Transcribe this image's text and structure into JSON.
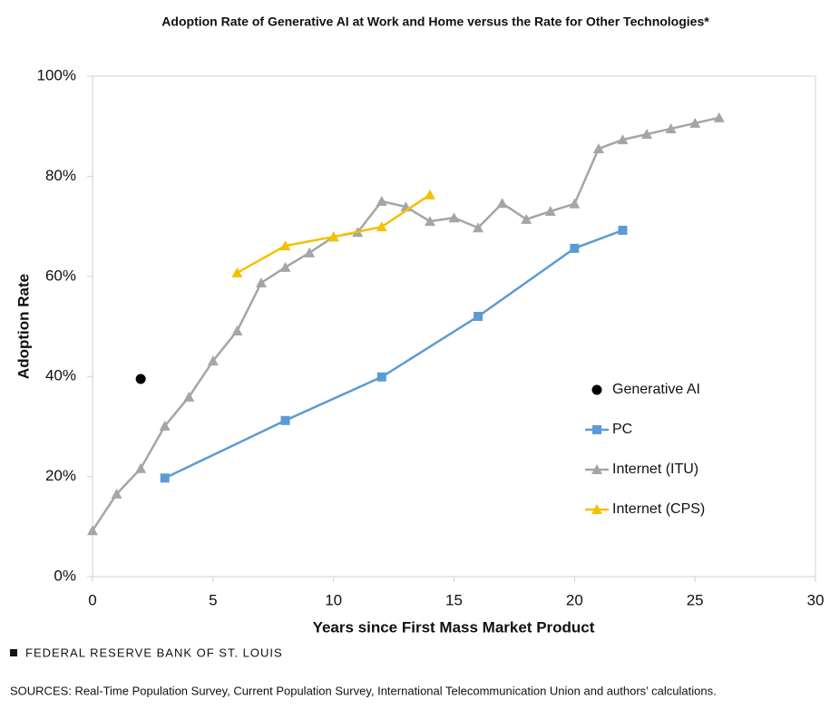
{
  "chart_data": {
    "type": "line",
    "title": "Adoption Rate of Generative AI at Work and Home versus the Rate for Other Technologies*",
    "x_label": "Years since First Mass Market Product",
    "y_label": "Adoption Rate",
    "xlim": [
      0,
      30
    ],
    "xticks": [
      0,
      5,
      10,
      15,
      20,
      25,
      30
    ],
    "ylim": [
      0,
      100
    ],
    "yticks": [
      {
        "value": 0,
        "label": "0%"
      },
      {
        "value": 20,
        "label": "20%"
      },
      {
        "value": 40,
        "label": "40%"
      },
      {
        "value": 60,
        "label": "60%"
      },
      {
        "value": 80,
        "label": "80%"
      },
      {
        "value": 100,
        "label": "100%"
      }
    ],
    "grid": false,
    "legend": "right",
    "series": [
      {
        "name": "Generative AI",
        "color": "#000000",
        "marker": "circle",
        "line": false,
        "x": [
          2
        ],
        "values": [
          39.5
        ]
      },
      {
        "name": "PC",
        "color": "#5b9bd5",
        "marker": "square",
        "line": true,
        "x": [
          3,
          8,
          12,
          16,
          20,
          22
        ],
        "values": [
          19.7,
          31.2,
          39.9,
          52.0,
          65.6,
          69.2
        ]
      },
      {
        "name": "Internet (ITU)",
        "color": "#a5a5a5",
        "marker": "triangle",
        "line": true,
        "x": [
          0,
          1,
          2,
          3,
          4,
          5,
          6,
          7,
          8,
          9,
          10,
          11,
          12,
          13,
          14,
          15,
          16,
          17,
          18,
          19,
          20,
          21,
          22,
          23,
          24,
          25,
          26
        ],
        "values": [
          9.2,
          16.5,
          21.6,
          30.1,
          35.9,
          43.1,
          49.1,
          58.7,
          61.8,
          64.7,
          67.9,
          68.8,
          75.0,
          73.9,
          71.0,
          71.7,
          69.7,
          74.6,
          71.4,
          73.0,
          74.5,
          85.5,
          87.3,
          88.4,
          89.5,
          90.6,
          91.7
        ]
      },
      {
        "name": "Internet (CPS)",
        "color": "#f5c000",
        "marker": "triangle",
        "line": true,
        "x": [
          6,
          8,
          10,
          12,
          14
        ],
        "values": [
          60.7,
          66.1,
          67.9,
          69.9,
          76.3
        ]
      }
    ]
  },
  "source_org": "FEDERAL RESERVE BANK OF ST. LOUIS",
  "sources": "SOURCES: Real-Time Population Survey, Current Population Survey, International Telecommunication Union and authors’ calculations."
}
